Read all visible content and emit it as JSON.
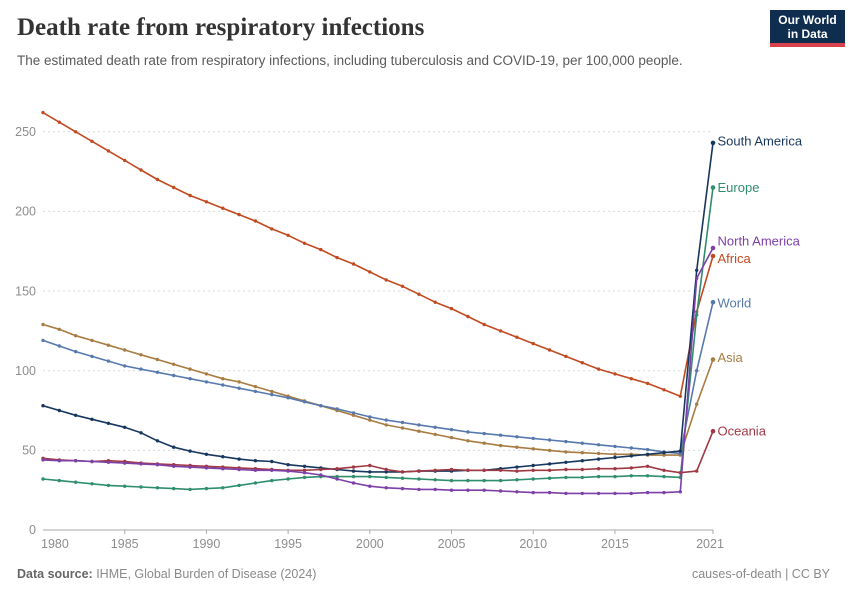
{
  "header": {
    "title": "Death rate from respiratory infections",
    "subtitle": "The estimated death rate from respiratory infections, including tuberculosis and COVID-19, per 100,000 people.",
    "logo": {
      "line1": "Our World",
      "line2": "in Data",
      "bg": "#0F2D4E",
      "accent": "#D8434B"
    }
  },
  "footer": {
    "source_label": "Data source:",
    "source_value": " IHME, Global Burden of Disease (2024)",
    "license": "causes-of-death | CC BY"
  },
  "chart_data": {
    "type": "line",
    "title": "Death rate from respiratory infections",
    "xlabel": "",
    "ylabel": "",
    "ylim": [
      0,
      270
    ],
    "xlim": [
      1980,
      2021
    ],
    "yticks": [
      0,
      50,
      100,
      150,
      200,
      250
    ],
    "xticks": [
      1980,
      1985,
      1990,
      1995,
      2000,
      2005,
      2010,
      2015,
      2021
    ],
    "grid": "horizontal-dashed",
    "legend_position": "end-labels-right",
    "years": [
      1980,
      1981,
      1982,
      1983,
      1984,
      1985,
      1986,
      1987,
      1988,
      1989,
      1990,
      1991,
      1992,
      1993,
      1994,
      1995,
      1996,
      1997,
      1998,
      1999,
      2000,
      2001,
      2002,
      2003,
      2004,
      2005,
      2006,
      2007,
      2008,
      2009,
      2010,
      2011,
      2012,
      2013,
      2014,
      2015,
      2016,
      2017,
      2018,
      2019,
      2020,
      2021
    ],
    "series": [
      {
        "name": "Africa",
        "color": "#C14A21",
        "label_dy": 2.5,
        "values": [
          262,
          256,
          250,
          244,
          238,
          232,
          226,
          220,
          215,
          210,
          206,
          202,
          198,
          194,
          189,
          185,
          180,
          176,
          171,
          167,
          162,
          157,
          153,
          148,
          143,
          139,
          134,
          129,
          125,
          121,
          117,
          113,
          109,
          105,
          101,
          98,
          95,
          92,
          88,
          84,
          137,
          172
        ]
      },
      {
        "name": "Asia",
        "color": "#A87C43",
        "label_dy": -2,
        "values": [
          129,
          126,
          122,
          119,
          116,
          113,
          110,
          107,
          104,
          101,
          98,
          95,
          93,
          90,
          87,
          84,
          81,
          78,
          75,
          72,
          69,
          66,
          64,
          62,
          60,
          58,
          56,
          54.5,
          53,
          52,
          51,
          50,
          49,
          48.5,
          48,
          47.5,
          47.5,
          47,
          47,
          47,
          79,
          107
        ]
      },
      {
        "name": "World",
        "color": "#5879AD",
        "label_dy": 1,
        "values": [
          119,
          115.5,
          112,
          109,
          106,
          103,
          101,
          99,
          97,
          95,
          93,
          91,
          89,
          87,
          85,
          83,
          80.5,
          78,
          76,
          73.5,
          71,
          69,
          67.5,
          66,
          64.5,
          63,
          61.5,
          60.5,
          59.5,
          58.5,
          57.5,
          56.5,
          55.5,
          54.5,
          53.5,
          52.5,
          51.5,
          50.5,
          49,
          48,
          100,
          143
        ]
      },
      {
        "name": "Europe",
        "color": "#2F8E6B",
        "label_dy": 0,
        "values": [
          32,
          31,
          30,
          29,
          28,
          27.5,
          27,
          26.5,
          26,
          25.5,
          26,
          26.5,
          28,
          29.5,
          31,
          32,
          33,
          33.5,
          33.5,
          33.5,
          33.5,
          33,
          32.5,
          32,
          31.5,
          31,
          31,
          31,
          31,
          31.5,
          32,
          32.5,
          33,
          33,
          33.5,
          33.5,
          34,
          34,
          33.5,
          33,
          135,
          215
        ]
      },
      {
        "name": "South America",
        "color": "#17375E",
        "label_dy": -2,
        "values": [
          78,
          75,
          72,
          69.5,
          67,
          64.5,
          61,
          56,
          52,
          49.5,
          47.5,
          46,
          44.5,
          43.5,
          43,
          41,
          40,
          39,
          38,
          37,
          36.5,
          36.5,
          36.5,
          37,
          37,
          37,
          37.5,
          37.5,
          38.5,
          39.5,
          40.5,
          41.5,
          42.5,
          43.5,
          44.5,
          45.5,
          46.5,
          47.5,
          48.5,
          49.5,
          163,
          243
        ]
      },
      {
        "name": "Oceania",
        "color": "#A03944",
        "label_dy": 0,
        "values": [
          45,
          44,
          43.5,
          43,
          43.5,
          43,
          42,
          41.5,
          41,
          40.5,
          40,
          39.5,
          39,
          38.5,
          38,
          37.5,
          37.5,
          38,
          38.5,
          39.5,
          40.5,
          38,
          36.5,
          37,
          37.5,
          38,
          37.5,
          37.5,
          37.5,
          37,
          37.5,
          37.5,
          38,
          38,
          38.5,
          38.5,
          39,
          40,
          37.5,
          36,
          37,
          62
        ]
      },
      {
        "name": "North America",
        "color": "#7D3FA8",
        "label_dy": -7,
        "values": [
          44,
          43.5,
          43.5,
          43,
          42.5,
          42,
          41.5,
          41,
          40,
          39.5,
          39,
          38.5,
          38,
          37.5,
          37.5,
          37,
          36,
          34.5,
          32,
          29.5,
          27.5,
          26.5,
          26,
          25.5,
          25.5,
          25,
          25,
          25,
          24.5,
          24,
          23.5,
          23.5,
          23,
          23,
          23,
          23,
          23,
          23.5,
          23.5,
          24,
          158,
          177
        ]
      }
    ],
    "axis_color": "#a8a8a8",
    "grid_color": "#dadada",
    "tick_label_color": "#8e8e8e"
  }
}
